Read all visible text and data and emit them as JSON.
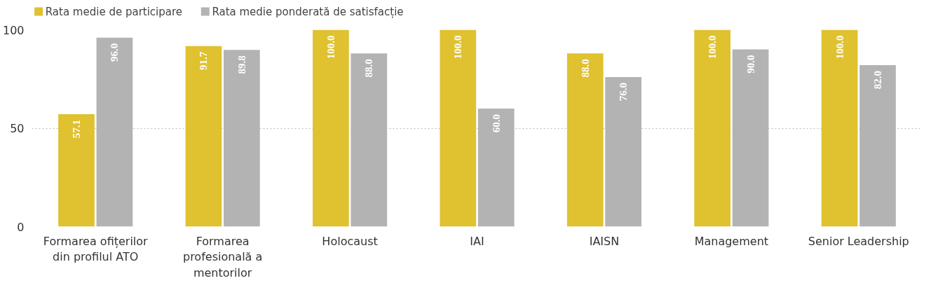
{
  "chart_data": {
    "type": "bar",
    "categories": [
      "Formarea ofițerilor din profilul ATO",
      "Formarea profesională a mentorilor",
      "Holocaust",
      "IAI",
      "IAISN",
      "Management",
      "Senior Leadership"
    ],
    "series": [
      {
        "name": "Rata medie de participare",
        "color": "#e0c130",
        "values": [
          57.1,
          91.7,
          100.0,
          100.0,
          88.0,
          100.0,
          100.0
        ],
        "value_labels": [
          "57.1",
          "91.7",
          "100.0",
          "100.0",
          "88.0",
          "100.0",
          "100.0"
        ]
      },
      {
        "name": "Rata medie ponderată de satisfacție",
        "color": "#b3b3b3",
        "values": [
          96.0,
          89.8,
          88.0,
          60.0,
          76.0,
          90.0,
          82.0
        ],
        "value_labels": [
          "96.0",
          "89.8",
          "88.0",
          "60.0",
          "76.0",
          "90.0",
          "82.0"
        ]
      }
    ],
    "ylim": [
      0,
      100
    ],
    "yticks": [
      0,
      50,
      100
    ],
    "grid": "y",
    "legend": "top left"
  }
}
